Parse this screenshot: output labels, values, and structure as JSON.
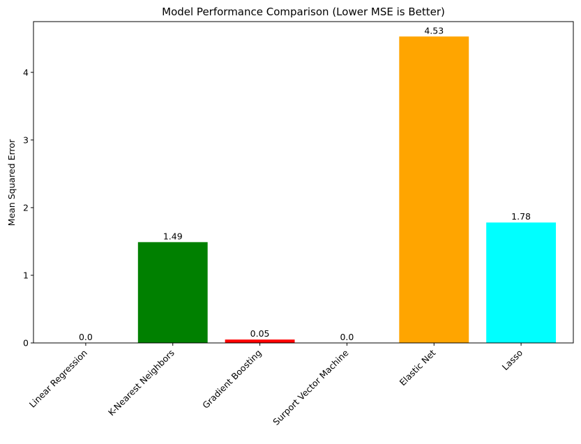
{
  "chart_data": {
    "type": "bar",
    "title": "Model Performance Comparison (Lower MSE is Better)",
    "xlabel": "",
    "ylabel": "Mean Squared Error",
    "categories": [
      "Linear Regression",
      "K-Nearest Neighbors",
      "Gradient Boosting",
      "Surport Vector Machine",
      "Elastic Net",
      "Lasso"
    ],
    "values": [
      0.0,
      1.49,
      0.05,
      0.0,
      4.53,
      1.78
    ],
    "value_labels": [
      "0.0",
      "1.49",
      "0.05",
      "0.0",
      "4.53",
      "1.78"
    ],
    "colors": [
      "#0000ff",
      "#008000",
      "#ff0000",
      "#8000ff",
      "#ffa500",
      "#00ffff"
    ],
    "ylim": [
      0,
      4.75
    ],
    "yticks": [
      0,
      1,
      2,
      3,
      4
    ],
    "grid": false,
    "legend": "none"
  }
}
